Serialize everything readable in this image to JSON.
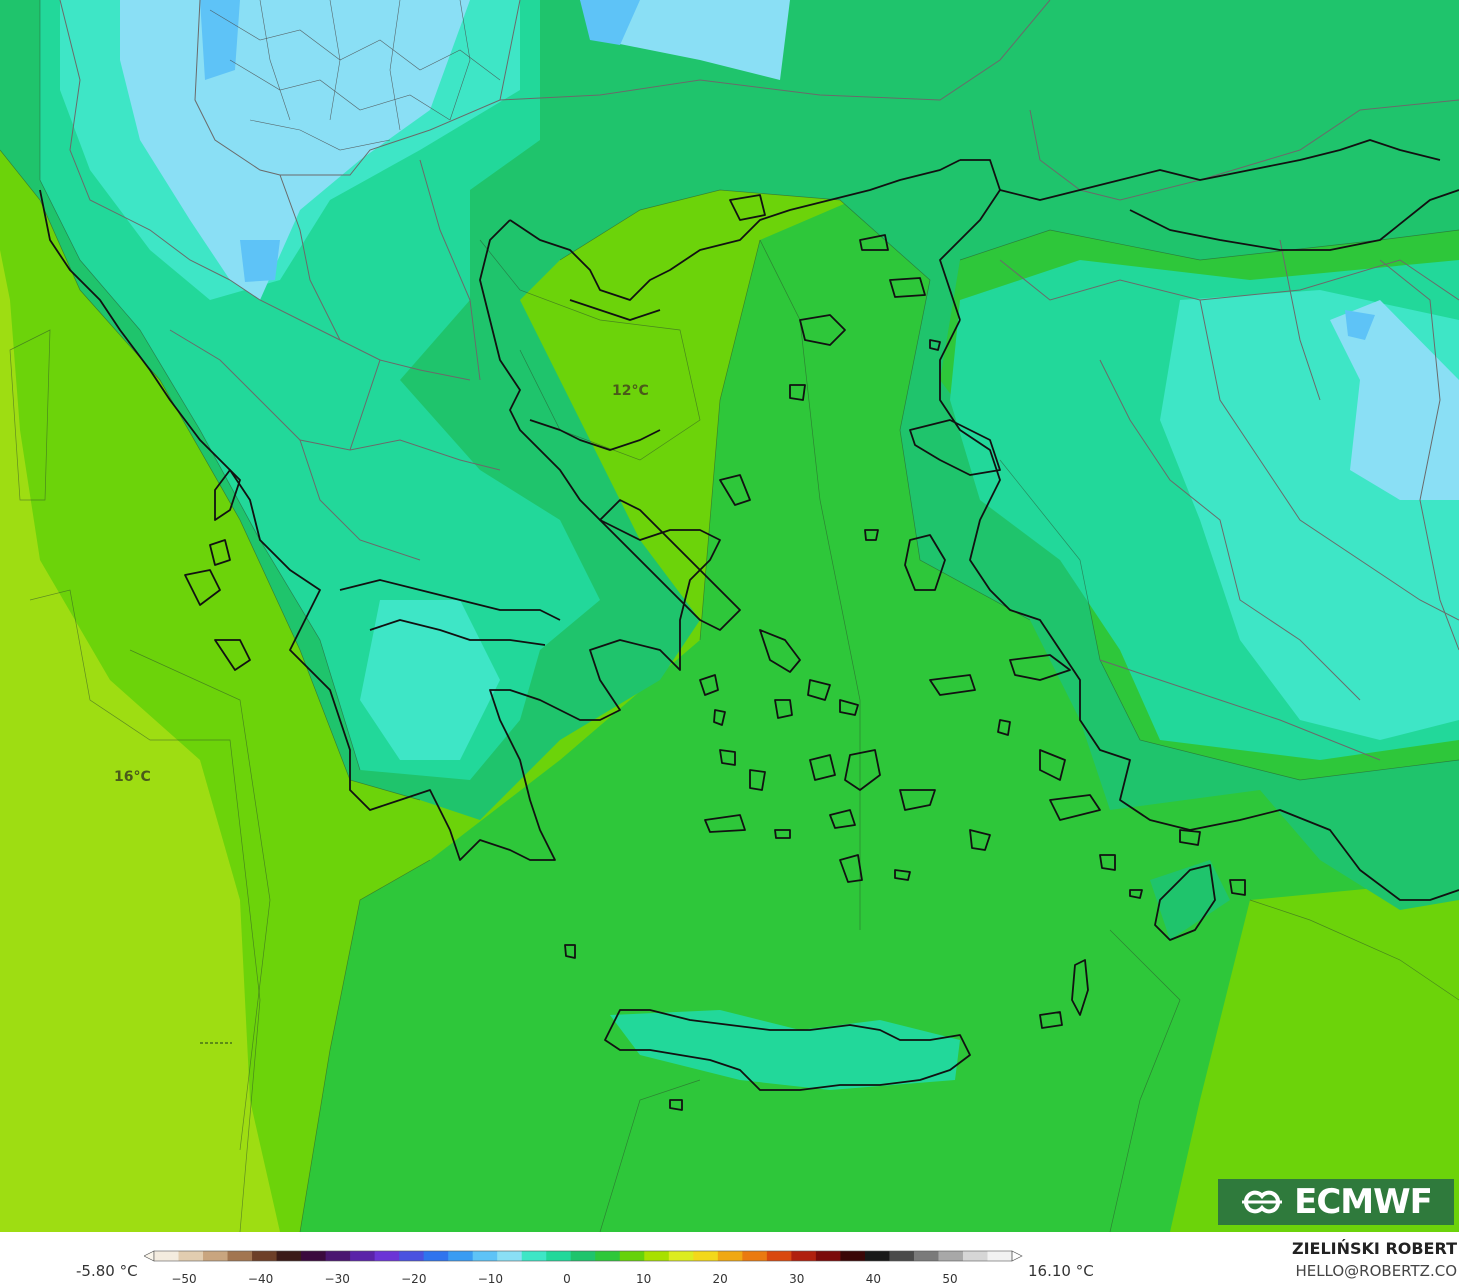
{
  "map": {
    "labels": [
      "12°C",
      "16°C"
    ]
  },
  "brand": {
    "logo_text": "ECMWF",
    "author": "ZIELIŃSKI ROBERT",
    "email": "HELLO@ROBERTZ.CO"
  },
  "legend": {
    "min_label": "-5.80 °C",
    "max_label": "16.10 °C",
    "ticks": [
      "−50",
      "−40",
      "−30",
      "−20",
      "−10",
      "0",
      "10",
      "20",
      "30",
      "40",
      "50"
    ],
    "colors": [
      "#f4ecdf",
      "#e2cdb0",
      "#c9a57f",
      "#a27550",
      "#6d3f28",
      "#3b1a18",
      "#3b0a3e",
      "#4a1670",
      "#5a23a8",
      "#6b34d6",
      "#4a52e0",
      "#2f74ee",
      "#3a9cf3",
      "#5ec3f7",
      "#8adff5",
      "#3ee6c6",
      "#22d89a",
      "#1fc46c",
      "#2ec73a",
      "#66d20a",
      "#a8e000",
      "#dcec20",
      "#f3d81a",
      "#f0a812",
      "#ea7a10",
      "#d9480e",
      "#b0200e",
      "#7a0a0a",
      "#3a0606",
      "#181818",
      "#4a4a4a",
      "#7a7a7a",
      "#a8a8a8",
      "#d6d6d6",
      "#f2f2f2"
    ]
  },
  "colors": {
    "sea_warm": "#9edd12",
    "sea_mid": "#6cd30a",
    "aegean": "#2ec73a",
    "land_mild": "#1fc46c",
    "land_cool": "#22d89a",
    "land_cold": "#3ee6c6",
    "land_coldest": "#8adff5",
    "frost": "#5ec3f7",
    "logo_bg": "#2f7a3c"
  }
}
